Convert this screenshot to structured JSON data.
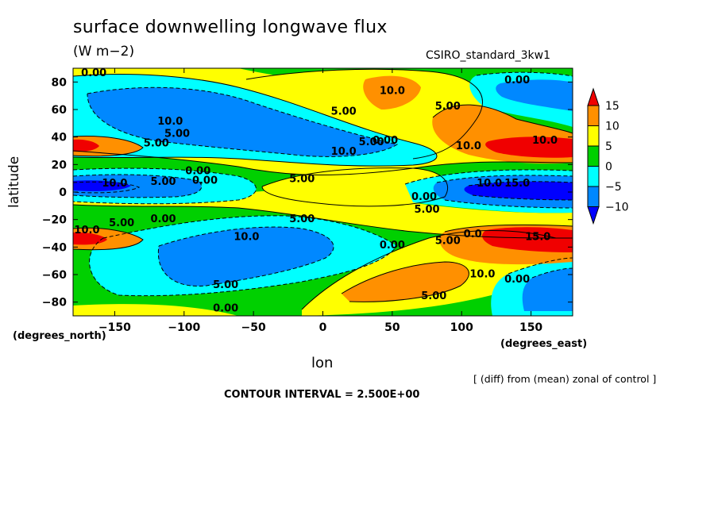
{
  "chart_data": {
    "type": "contour",
    "title": "surface downwelling longwave flux",
    "units": "(W m−2)",
    "model_label": "CSIRO_standard_3kw1",
    "xlabel": "lon",
    "ylabel": "latitude",
    "x_units": "(degrees_east)",
    "y_units": "(degrees_north)",
    "xlim": [
      -180,
      180
    ],
    "ylim": [
      -90,
      90
    ],
    "x_ticks": [
      "−150",
      "−100",
      "−50",
      "0",
      "50",
      "100",
      "150"
    ],
    "x_tick_values": [
      -150,
      -100,
      -50,
      0,
      50,
      100,
      150
    ],
    "y_ticks": [
      "80",
      "60",
      "40",
      "20",
      "0",
      "−20",
      "−40",
      "−60",
      "−80"
    ],
    "y_tick_values": [
      80,
      60,
      40,
      20,
      0,
      -20,
      -40,
      -60,
      -80
    ],
    "note": "[ (diff) from (mean) zonal of control ]",
    "contour_interval_text": "CONTOUR INTERVAL = 2.500E+00",
    "legend": {
      "labels": [
        "15",
        "10",
        "5",
        "0",
        "−5",
        "−10"
      ],
      "colors": [
        "#f00000",
        "#ff9000",
        "#ffff00",
        "#00d000",
        "#00ffff",
        "#0088ff",
        "#0000ff"
      ]
    },
    "contour_labels": [
      {
        "text": "0.00",
        "lon": -165,
        "lat": 87
      },
      {
        "text": "10.0",
        "lon": 50,
        "lat": 74
      },
      {
        "text": "0.00",
        "lon": 140,
        "lat": 82
      },
      {
        "text": "5.00",
        "lon": 90,
        "lat": 63
      },
      {
        "text": "5.00",
        "lon": 15,
        "lat": 59
      },
      {
        "text": "10.0",
        "lon": -110,
        "lat": 52
      },
      {
        "text": "5.00",
        "lon": -105,
        "lat": 43
      },
      {
        "text": "5.00",
        "lon": -120,
        "lat": 36
      },
      {
        "text": "5.00",
        "lon": 35,
        "lat": 37
      },
      {
        "text": "0.00",
        "lon": 45,
        "lat": 38
      },
      {
        "text": "10.0",
        "lon": 15,
        "lat": 30
      },
      {
        "text": "10.0",
        "lon": 105,
        "lat": 34
      },
      {
        "text": "10.0",
        "lon": 160,
        "lat": 38
      },
      {
        "text": "0.00",
        "lon": -90,
        "lat": 16
      },
      {
        "text": "0.00",
        "lon": -85,
        "lat": 9
      },
      {
        "text": "10.0",
        "lon": -150,
        "lat": 7
      },
      {
        "text": "5.00",
        "lon": -115,
        "lat": 8
      },
      {
        "text": "5.00",
        "lon": -15,
        "lat": 10
      },
      {
        "text": "10.0",
        "lon": 120,
        "lat": 7
      },
      {
        "text": "15.0",
        "lon": 140,
        "lat": 7
      },
      {
        "text": "0.00",
        "lon": 73,
        "lat": -3
      },
      {
        "text": "5.00",
        "lon": 75,
        "lat": -12
      },
      {
        "text": "0.00",
        "lon": -115,
        "lat": -19
      },
      {
        "text": "5.00",
        "lon": -145,
        "lat": -22
      },
      {
        "text": "10.0",
        "lon": -170,
        "lat": -27
      },
      {
        "text": "5.00",
        "lon": -15,
        "lat": -19
      },
      {
        "text": "10.0",
        "lon": -55,
        "lat": -32
      },
      {
        "text": "0.00",
        "lon": 50,
        "lat": -38
      },
      {
        "text": "5.00",
        "lon": 90,
        "lat": -35
      },
      {
        "text": "0.0",
        "lon": 108,
        "lat": -30
      },
      {
        "text": "15.0",
        "lon": 155,
        "lat": -32
      },
      {
        "text": "10.0",
        "lon": 115,
        "lat": -59
      },
      {
        "text": "0.00",
        "lon": 140,
        "lat": -63
      },
      {
        "text": "5.00",
        "lon": -70,
        "lat": -67
      },
      {
        "text": "5.00",
        "lon": 80,
        "lat": -75
      },
      {
        "text": "0.00",
        "lon": -70,
        "lat": -84
      }
    ]
  }
}
